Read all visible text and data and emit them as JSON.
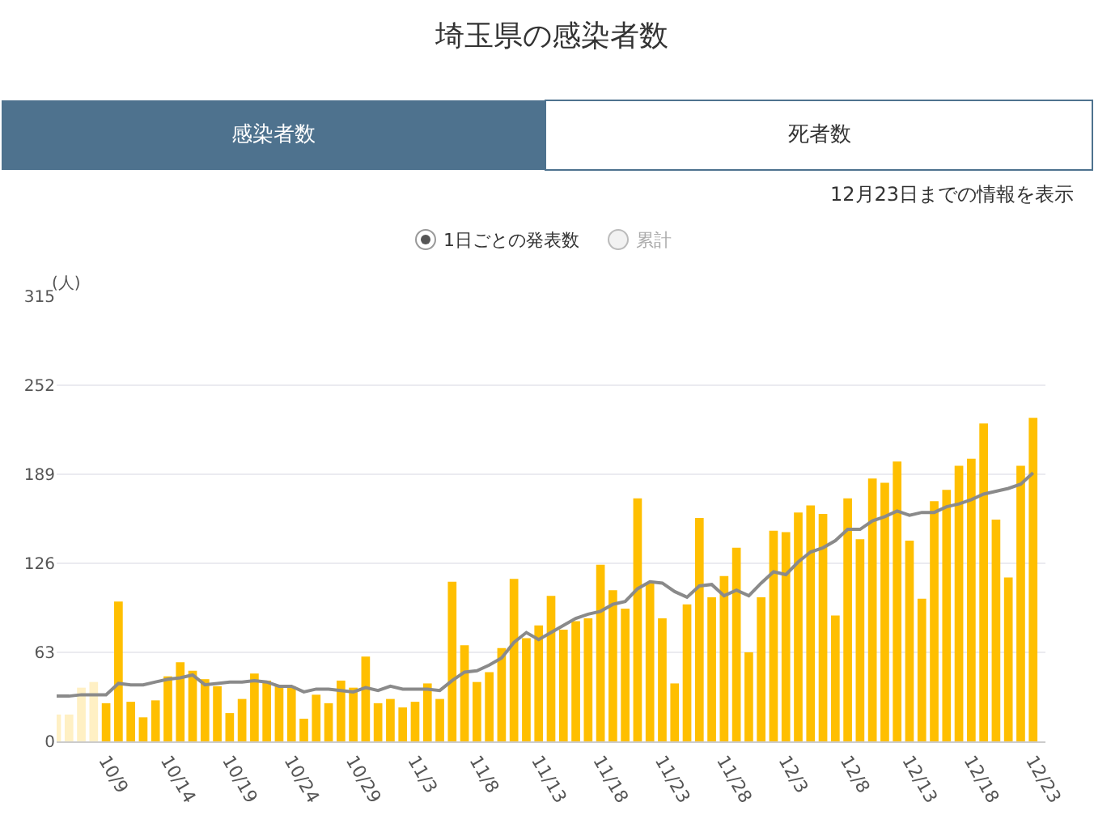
{
  "chart_data": {
    "type": "bar",
    "title": "埼玉県の感染者数",
    "ylabel": "(人)",
    "annotations": [
      "感染者数",
      "死者数",
      "12月23日までの情報を表示",
      "1日ごとの発表数",
      "累計"
    ],
    "x": [
      "--10-05",
      "--10-06",
      "--10-07",
      "--10-08",
      "--10-09",
      "--10-10",
      "--10-11",
      "--10-12",
      "--10-13",
      "--10-14",
      "--10-15",
      "--10-16",
      "--10-17",
      "--10-18",
      "--10-19",
      "--10-20",
      "--10-21",
      "--10-22",
      "--10-23",
      "--10-24",
      "--10-25",
      "--10-26",
      "--10-27",
      "--10-28",
      "--10-29",
      "--10-30",
      "--10-31",
      "--11-01",
      "--11-02",
      "--11-03",
      "--11-04",
      "--11-05",
      "--11-06",
      "--11-07",
      "--11-08",
      "--11-09",
      "--11-10",
      "--11-11",
      "--11-12",
      "--11-13",
      "--11-14",
      "--11-15",
      "--11-16",
      "--11-17",
      "--11-18",
      "--11-19",
      "--11-20",
      "--11-21",
      "--11-22",
      "--11-23",
      "--11-24",
      "--11-25",
      "--11-26",
      "--11-27",
      "--11-28",
      "--11-29",
      "--11-30",
      "--12-01",
      "--12-02",
      "--12-03",
      "--12-04",
      "--12-05",
      "--12-06",
      "--12-07",
      "--12-08",
      "--12-09",
      "--12-10",
      "--12-11",
      "--12-12",
      "--12-13",
      "--12-14",
      "--12-15",
      "--12-16",
      "--12-17",
      "--12-18",
      "--12-19",
      "--12-20",
      "--12-21",
      "--12-22",
      "--12-23"
    ],
    "series": [
      {
        "color": "#ffbf00",
        "colors": [
          "#fff0c4",
          "#fff0c4",
          "#fff0c4",
          "#fff0c4",
          "#ffbf00",
          "#ffbf00",
          "#ffbf00",
          "#ffbf00",
          "#ffbf00",
          "#ffbf00",
          "#ffbf00",
          "#ffbf00",
          "#ffbf00",
          "#ffbf00",
          "#ffbf00",
          "#ffbf00",
          "#ffbf00",
          "#ffbf00",
          "#ffbf00",
          "#ffbf00",
          "#ffbf00",
          "#ffbf00",
          "#ffbf00",
          "#ffbf00",
          "#ffbf00",
          "#ffbf00",
          "#ffbf00",
          "#ffbf00",
          "#ffbf00",
          "#ffbf00",
          "#ffbf00",
          "#ffbf00",
          "#ffbf00",
          "#ffbf00",
          "#ffbf00",
          "#ffbf00",
          "#ffbf00",
          "#ffbf00",
          "#ffbf00",
          "#ffbf00",
          "#ffbf00",
          "#ffbf00",
          "#ffbf00",
          "#ffbf00",
          "#ffbf00",
          "#ffbf00",
          "#ffbf00",
          "#ffbf00",
          "#ffbf00",
          "#ffbf00",
          "#ffbf00",
          "#ffbf00",
          "#ffbf00",
          "#ffbf00",
          "#ffbf00",
          "#ffbf00",
          "#ffbf00",
          "#ffbf00",
          "#ffbf00",
          "#ffbf00",
          "#ffbf00",
          "#ffbf00",
          "#ffbf00",
          "#ffbf00",
          "#ffbf00",
          "#ffbf00",
          "#ffbf00",
          "#ffbf00",
          "#ffbf00",
          "#ffbf00",
          "#ffbf00",
          "#ffbf00",
          "#ffbf00",
          "#ffbf00",
          "#ffbf00",
          "#ffbf00",
          "#ffbf00",
          "#ffbf00",
          "#ffbf00",
          "#ffbf00"
        ],
        "values": [
          19,
          19,
          38,
          42,
          27,
          99,
          28,
          17,
          29,
          46,
          56,
          50,
          44,
          39,
          20,
          30,
          48,
          43,
          39,
          39,
          16,
          33,
          27,
          43,
          38,
          60,
          27,
          30,
          24,
          28,
          41,
          30,
          113,
          68,
          42,
          49,
          66,
          115,
          73,
          82,
          103,
          79,
          85,
          87,
          125,
          107,
          94,
          172,
          112,
          87,
          41,
          97,
          158,
          102,
          117,
          137,
          63,
          102,
          149,
          148,
          162,
          167,
          161,
          89,
          172,
          143,
          186,
          183,
          198,
          142,
          101,
          170,
          178,
          195,
          200,
          225,
          157,
          116,
          195,
          229
        ]
      },
      {
        "type": "line",
        "color": "#8a8a8a",
        "marker": "none",
        "line_style": "solid",
        "values": [
          32,
          32,
          33,
          33,
          33,
          41,
          40,
          40,
          42,
          44,
          45,
          47,
          40,
          41,
          42,
          42,
          43,
          42,
          39,
          39,
          35,
          37,
          37,
          36,
          35,
          38,
          36,
          39,
          37,
          37,
          37,
          36,
          43,
          49,
          50,
          54,
          59,
          70,
          77,
          72,
          77,
          82,
          87,
          90,
          92,
          97,
          99,
          108,
          113,
          112,
          106,
          102,
          110,
          111,
          103,
          107,
          103,
          112,
          120,
          118,
          127,
          134,
          137,
          142,
          150,
          150,
          156,
          159,
          163,
          160,
          162,
          162,
          166,
          168,
          171,
          175,
          177,
          179,
          182,
          190
        ]
      }
    ],
    "xlim": [
      "--10-05",
      "--12-24"
    ],
    "xticks": [
      {
        "value": "--10-09",
        "label": "10/9"
      },
      {
        "value": "--10-14",
        "label": "10/14"
      },
      {
        "value": "--10-19",
        "label": "10/19"
      },
      {
        "value": "--10-24",
        "label": "10/24"
      },
      {
        "value": "--10-29",
        "label": "10/29"
      },
      {
        "value": "--11-03",
        "label": "11/3"
      },
      {
        "value": "--11-08",
        "label": "11/8"
      },
      {
        "value": "--11-13",
        "label": "11/13"
      },
      {
        "value": "--11-18",
        "label": "11/18"
      },
      {
        "value": "--11-23",
        "label": "11/23"
      },
      {
        "value": "--11-28",
        "label": "11/28"
      },
      {
        "value": "--12-03",
        "label": "12/3"
      },
      {
        "value": "--12-08",
        "label": "12/8"
      },
      {
        "value": "--12-13",
        "label": "12/13"
      },
      {
        "value": "--12-18",
        "label": "12/18"
      },
      {
        "value": "--12-23",
        "label": "12/23"
      }
    ],
    "ylim": [
      0,
      315
    ],
    "yticks": [
      0,
      63,
      126,
      189,
      252,
      315
    ],
    "grid": "y"
  }
}
